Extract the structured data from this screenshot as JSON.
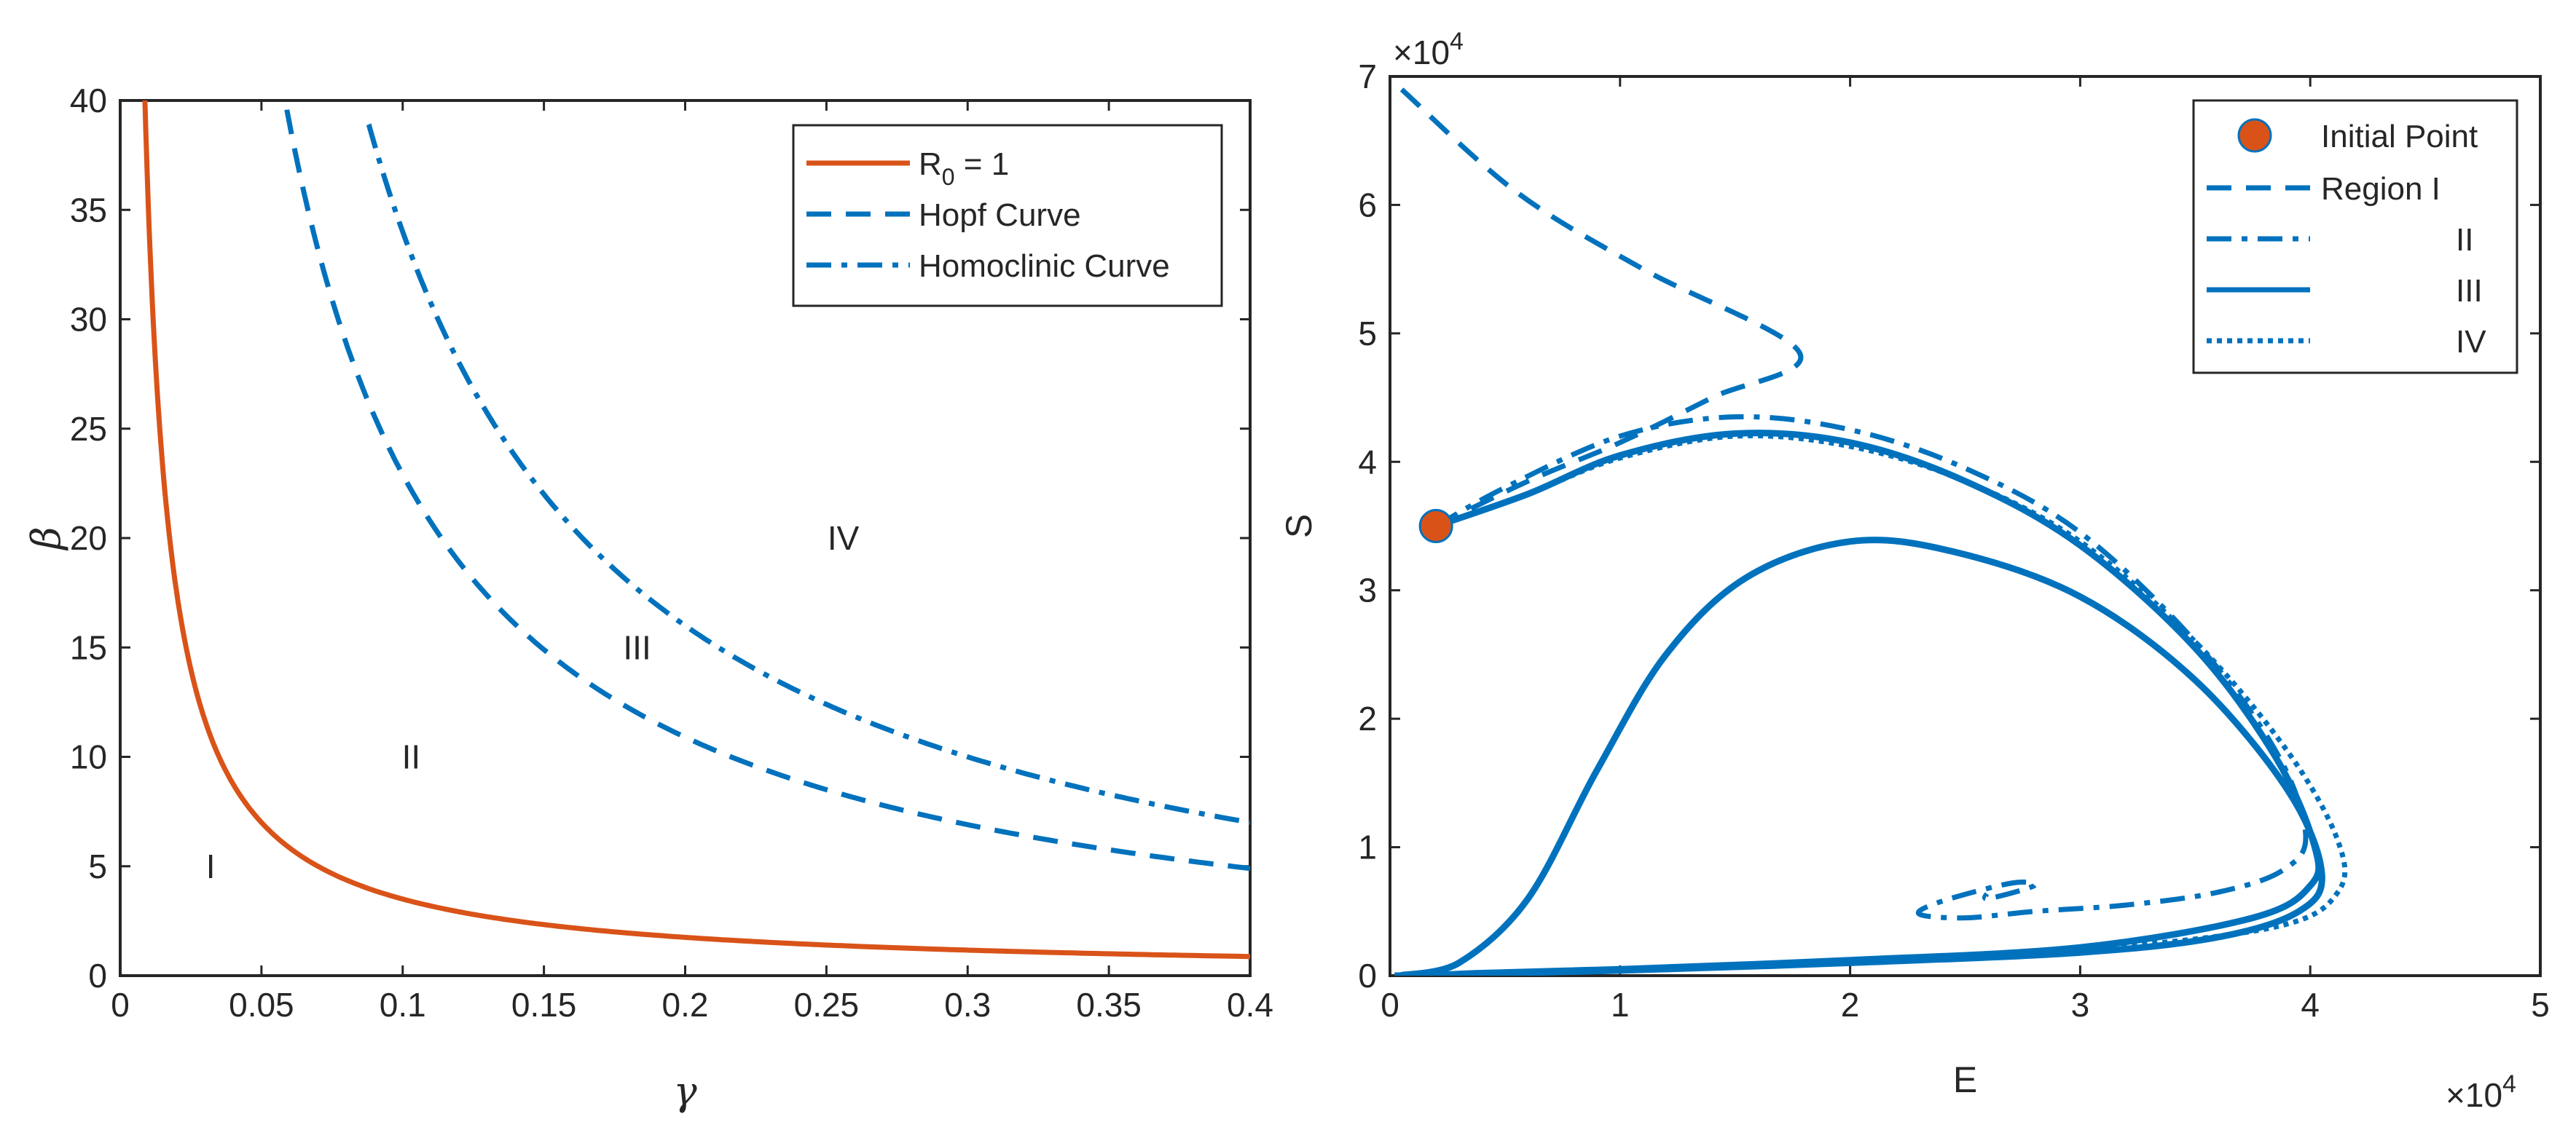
{
  "colors": {
    "red": "#D95319",
    "blue": "#0072BD",
    "axis": "#262626"
  },
  "chart_data": [
    {
      "type": "line",
      "xlabel": "γ",
      "ylabel": "β",
      "xlim": [
        0,
        0.4
      ],
      "ylim": [
        0,
        40
      ],
      "xticks": [
        0,
        0.05,
        0.1,
        0.15,
        0.2,
        0.25,
        0.3,
        0.35,
        0.4
      ],
      "xtick_labels": [
        "0",
        "0.05",
        "0.1",
        "0.15",
        "0.2",
        "0.25",
        "0.3",
        "0.35",
        "0.4"
      ],
      "yticks": [
        0,
        5,
        10,
        15,
        20,
        25,
        30,
        35,
        40
      ],
      "ytick_labels": [
        "0",
        "5",
        "10",
        "15",
        "20",
        "25",
        "30",
        "35",
        "40"
      ],
      "legend_position": "top-right",
      "series": [
        {
          "name": "R0 = 1",
          "label_main": "R",
          "label_sub": "0",
          "label_rest": " = 1",
          "color": "#D95319",
          "style": "solid",
          "formula": "beta = 0.35 / gamma"
        },
        {
          "name": "Hopf Curve",
          "color": "#0072BD",
          "style": "dashed",
          "formula": "beta = 2.4 / gamma - 1.1"
        },
        {
          "name": "Homoclinic Curve",
          "color": "#0072BD",
          "style": "dashdot",
          "formula": "beta = 3.6 / gamma - 2"
        }
      ],
      "annotations": [
        {
          "text": "I",
          "x": 0.032,
          "y": 5
        },
        {
          "text": "II",
          "x": 0.103,
          "y": 10
        },
        {
          "text": "III",
          "x": 0.183,
          "y": 15
        },
        {
          "text": "IV",
          "x": 0.256,
          "y": 20
        }
      ]
    },
    {
      "type": "line",
      "xlabel": "E",
      "ylabel": "S",
      "x_exponent_label": "×10",
      "x_exponent": "4",
      "y_exponent_label": "×10",
      "y_exponent": "4",
      "xlim": [
        0,
        5
      ],
      "ylim": [
        0,
        7
      ],
      "xticks": [
        0,
        1,
        2,
        3,
        4,
        5
      ],
      "xtick_labels": [
        "0",
        "1",
        "2",
        "3",
        "4",
        "5"
      ],
      "yticks": [
        0,
        1,
        2,
        3,
        4,
        5,
        6,
        7
      ],
      "ytick_labels": [
        "0",
        "1",
        "2",
        "3",
        "4",
        "5",
        "6",
        "7"
      ],
      "legend_position": "top-right",
      "initial_point": {
        "name": "Initial Point",
        "x": 0.2,
        "y": 3.5,
        "color": "#D95319"
      },
      "series": [
        {
          "name": "Region I",
          "color": "#0072BD",
          "style": "dashed",
          "points": [
            [
              0.2,
              3.5
            ],
            [
              0.6,
              3.85
            ],
            [
              1.0,
              4.15
            ],
            [
              1.4,
              4.5
            ],
            [
              1.78,
              4.85
            ],
            [
              1.1,
              5.5
            ],
            [
              0.55,
              6.1
            ],
            [
              0.05,
              6.9
            ]
          ]
        },
        {
          "name": "II",
          "color": "#0072BD",
          "style": "dashdot",
          "points": [
            [
              0.2,
              3.5
            ],
            [
              0.5,
              3.8
            ],
            [
              1.0,
              4.2
            ],
            [
              1.5,
              4.35
            ],
            [
              2.0,
              4.25
            ],
            [
              2.5,
              3.95
            ],
            [
              3.0,
              3.45
            ],
            [
              3.5,
              2.6
            ],
            [
              3.85,
              1.75
            ],
            [
              3.98,
              1.1
            ],
            [
              3.88,
              0.82
            ],
            [
              3.6,
              0.65
            ],
            [
              3.2,
              0.55
            ],
            [
              2.8,
              0.5
            ],
            [
              2.5,
              0.45
            ],
            [
              2.3,
              0.48
            ],
            [
              2.4,
              0.58
            ],
            [
              2.7,
              0.72
            ],
            [
              2.8,
              0.7
            ],
            [
              2.6,
              0.6
            ],
            [
              2.6,
              0.65
            ]
          ]
        },
        {
          "name": "III",
          "color": "#0072BD",
          "style": "solid",
          "width": 9,
          "points": [
            [
              0.2,
              3.5
            ],
            [
              0.6,
              3.75
            ],
            [
              1.0,
              4.05
            ],
            [
              1.5,
              4.22
            ],
            [
              2.0,
              4.15
            ],
            [
              2.5,
              3.85
            ],
            [
              3.0,
              3.35
            ],
            [
              3.5,
              2.55
            ],
            [
              3.85,
              1.7
            ],
            [
              4.02,
              1.0
            ],
            [
              4.0,
              0.7
            ],
            [
              3.75,
              0.45
            ],
            [
              3.0,
              0.22
            ],
            [
              2.0,
              0.12
            ],
            [
              1.0,
              0.05
            ],
            [
              0.4,
              0.02
            ],
            [
              0.05,
              0
            ],
            [
              0.3,
              0.1
            ],
            [
              0.6,
              0.6
            ],
            [
              0.9,
              1.6
            ],
            [
              1.2,
              2.5
            ],
            [
              1.55,
              3.1
            ],
            [
              2.0,
              3.38
            ],
            [
              2.45,
              3.3
            ],
            [
              3.0,
              2.95
            ],
            [
              3.5,
              2.3
            ],
            [
              3.9,
              1.45
            ],
            [
              4.05,
              0.8
            ],
            [
              3.95,
              0.5
            ],
            [
              3.6,
              0.3
            ],
            [
              3.0,
              0.18
            ],
            [
              2.0,
              0.1
            ],
            [
              1.0,
              0.04
            ],
            [
              0.3,
              0.01
            ],
            [
              0.02,
              0
            ]
          ]
        },
        {
          "name": "IV",
          "color": "#0072BD",
          "style": "dotted",
          "points": [
            [
              0.2,
              3.5
            ],
            [
              0.6,
              3.75
            ],
            [
              1.0,
              4.03
            ],
            [
              1.5,
              4.2
            ],
            [
              2.0,
              4.12
            ],
            [
              2.5,
              3.85
            ],
            [
              3.0,
              3.38
            ],
            [
              3.5,
              2.6
            ],
            [
              3.9,
              1.75
            ],
            [
              4.12,
              1.05
            ],
            [
              4.12,
              0.65
            ],
            [
              3.85,
              0.38
            ],
            [
              3.0,
              0.2
            ],
            [
              2.0,
              0.1
            ],
            [
              1.0,
              0.04
            ],
            [
              0.3,
              0.01
            ],
            [
              0.02,
              0
            ]
          ]
        }
      ]
    }
  ]
}
